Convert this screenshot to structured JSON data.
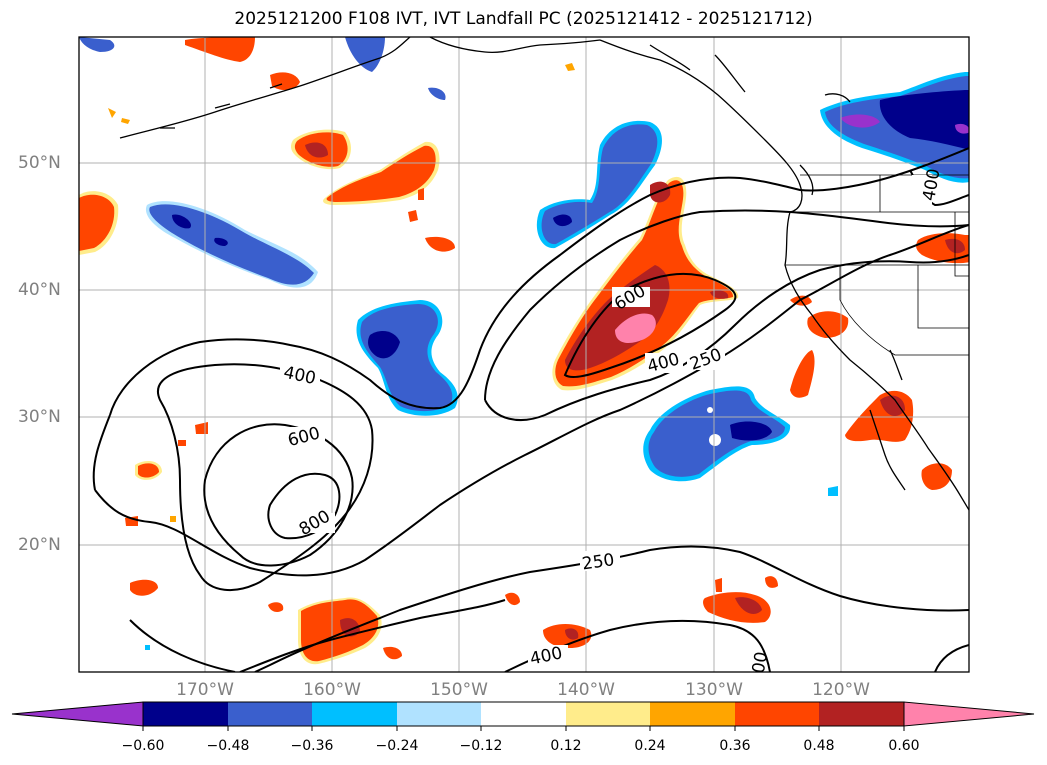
{
  "title": "2025121200 F108 IVT, IVT Landfall PC (2025121412 - 2025121712)",
  "map": {
    "lat_labels": [
      "50°N",
      "40°N",
      "30°N",
      "20°N"
    ],
    "lon_labels": [
      "170°W",
      "160°W",
      "150°W",
      "140°W",
      "130°W",
      "120°W"
    ],
    "contour_labels": [
      "400",
      "600",
      "800",
      "600",
      "400",
      "250",
      "250",
      "400",
      "400",
      "00"
    ],
    "colors": {
      "neg_extend": "#9932cc",
      "neg_060": "#00008b",
      "neg_048": "#3a5fcd",
      "neg_036": "#00bfff",
      "neg_024": "#b0e2ff",
      "neutral": "#ffffff",
      "pos_012": "#ffec8b",
      "pos_024": "#ffa500",
      "pos_036": "#ff4500",
      "pos_048": "#b22222",
      "pos_extend": "#ff82ab"
    }
  },
  "colorbar": {
    "tick_labels": [
      "−0.60",
      "−0.48",
      "−0.36",
      "−0.24",
      "−0.12",
      "0.12",
      "0.24",
      "0.36",
      "0.48",
      "0.60"
    ],
    "bins": [
      "#9932cc",
      "#00008b",
      "#3a5fcd",
      "#00bfff",
      "#b0e2ff",
      "#ffffff",
      "#ffec8b",
      "#ffa500",
      "#ff4500",
      "#b22222",
      "#ff82ab"
    ]
  }
}
